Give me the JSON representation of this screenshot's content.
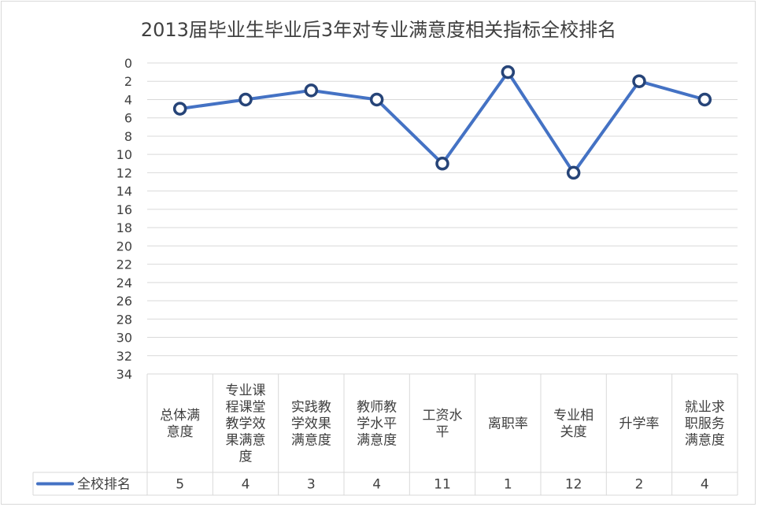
{
  "chart_data": {
    "type": "line",
    "title": "2013届毕业生毕业后3年对专业满意度相关指标全校排名",
    "categories": [
      [
        "总体满",
        "意度"
      ],
      [
        "专业课",
        "程课堂",
        "教学效",
        "果满意",
        "度"
      ],
      [
        "实践教",
        "学效果",
        "满意度"
      ],
      [
        "教师教",
        "学水平",
        "满意度"
      ],
      [
        "工资水",
        "平"
      ],
      [
        "离职率"
      ],
      [
        "专业相",
        "关度"
      ],
      [
        "升学率"
      ],
      [
        "就业求",
        "职服务",
        "满意度"
      ]
    ],
    "series": [
      {
        "name": "全校排名",
        "values": [
          5,
          4,
          3,
          4,
          11,
          1,
          12,
          2,
          4
        ],
        "labels": [
          "5",
          "4",
          "3",
          "4",
          "11",
          "1",
          "12",
          "2",
          "4"
        ],
        "color": "#4472c4"
      }
    ],
    "y_ticks": [
      "0",
      "2",
      "4",
      "6",
      "8",
      "10",
      "12",
      "14",
      "16",
      "18",
      "20",
      "22",
      "24",
      "26",
      "28",
      "30",
      "32",
      "34"
    ],
    "ylim": [
      0,
      34
    ],
    "y_reversed": true,
    "grid": true,
    "legend": "data-table-left"
  }
}
